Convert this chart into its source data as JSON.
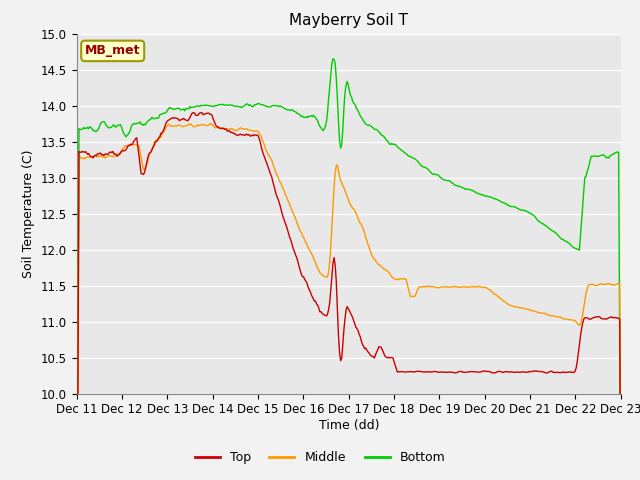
{
  "title": "Mayberry Soil T",
  "xlabel": "Time (dd)",
  "ylabel": "Soil Temperature (C)",
  "ylim": [
    10.0,
    15.0
  ],
  "xlim": [
    0,
    12
  ],
  "xtick_labels": [
    "Dec 11",
    "Dec 12",
    "Dec 13",
    "Dec 14",
    "Dec 15",
    "Dec 16",
    "Dec 17",
    "Dec 18",
    "Dec 19",
    "Dec 20",
    "Dec 21",
    "Dec 22",
    "Dec 23"
  ],
  "ytick_vals": [
    10.0,
    10.5,
    11.0,
    11.5,
    12.0,
    12.5,
    13.0,
    13.5,
    14.0,
    14.5,
    15.0
  ],
  "colors": {
    "top": "#cc0000",
    "middle": "#ff9900",
    "bottom": "#00cc00",
    "background": "#e8e8e8",
    "grid": "#ffffff",
    "fig_bg": "#f2f2f2"
  },
  "label_box": "MB_met",
  "label_box_facecolor": "#ffffcc",
  "label_box_edgecolor": "#999900",
  "label_box_textcolor": "#990000",
  "legend_labels": [
    "Top",
    "Middle",
    "Bottom"
  ],
  "linewidth": 1.0
}
